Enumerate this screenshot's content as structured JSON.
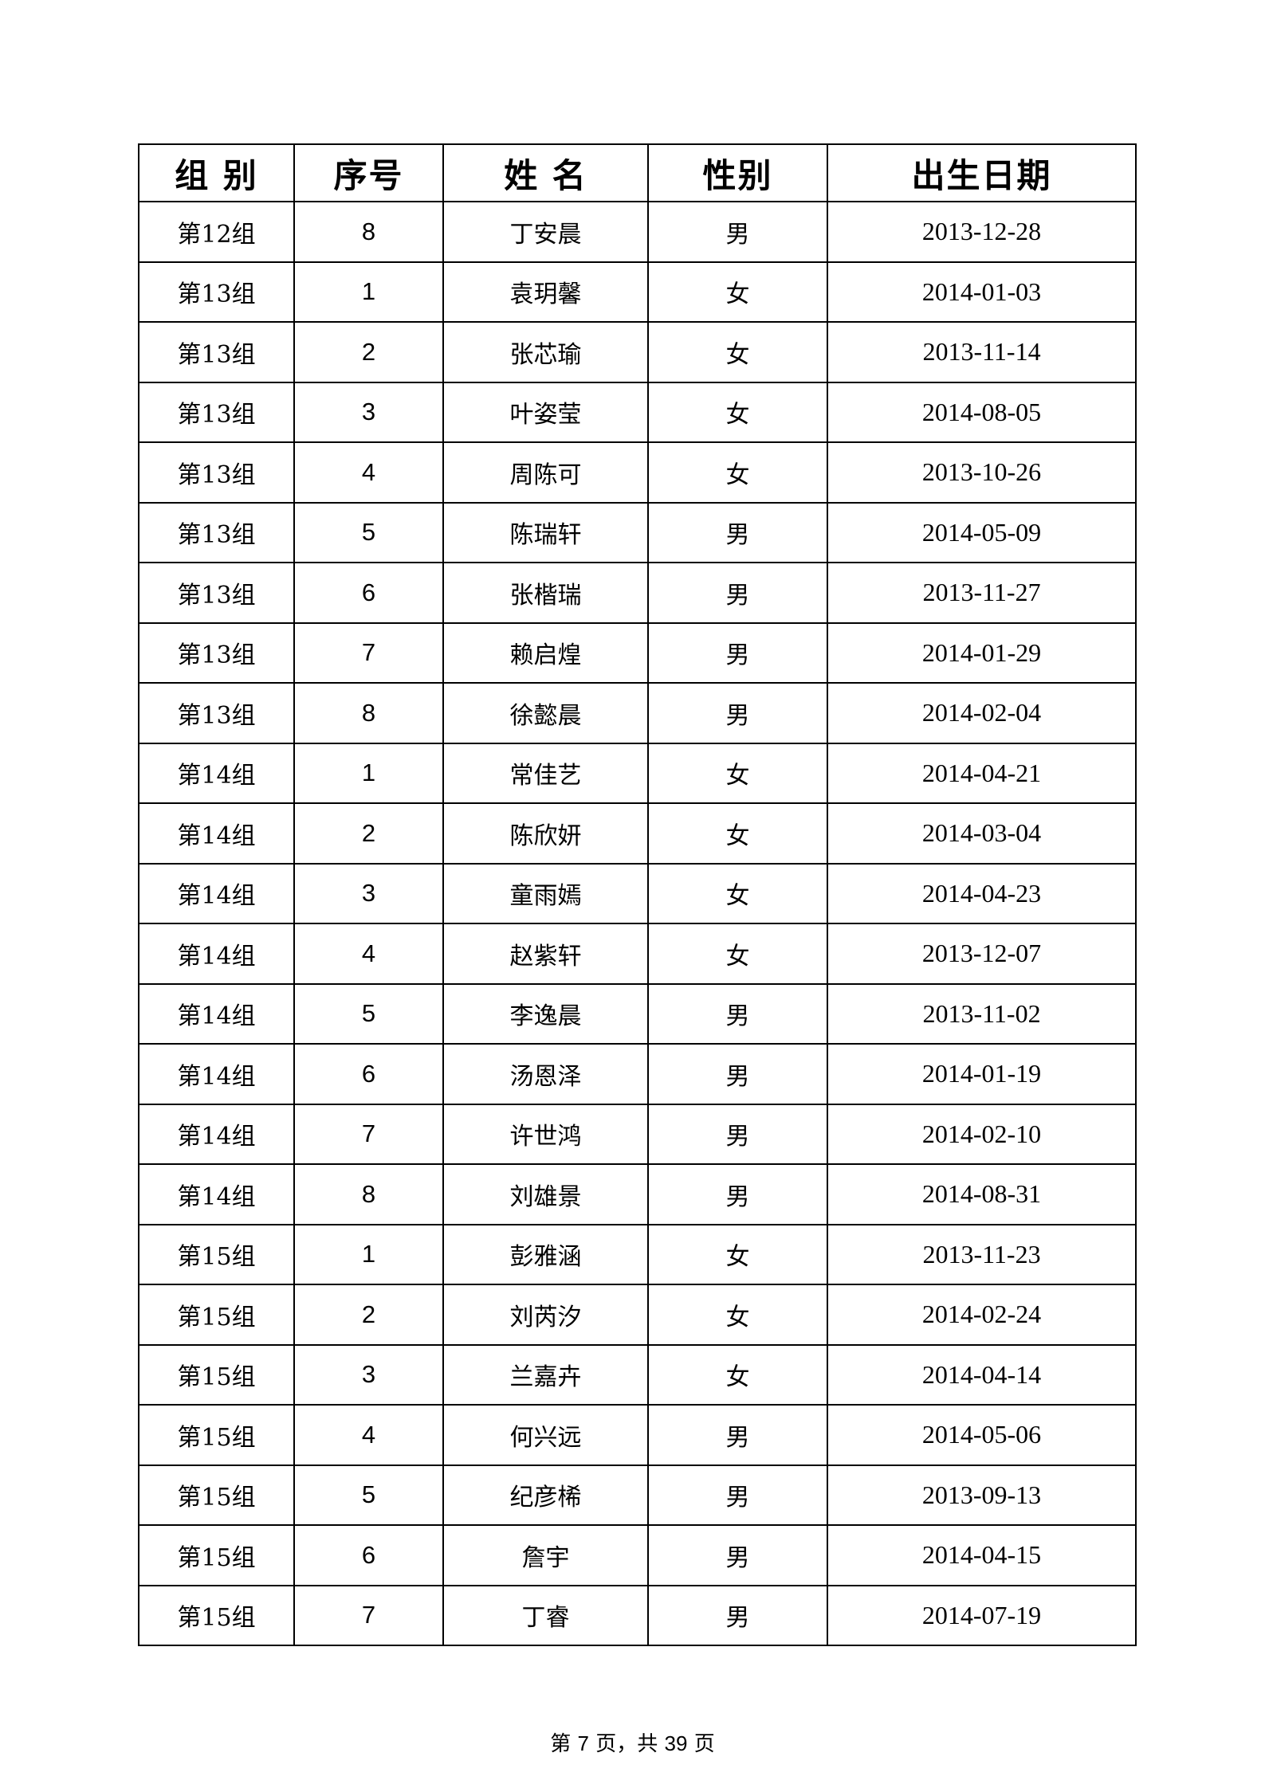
{
  "table": {
    "headers": [
      "组 别",
      "序号",
      "姓 名",
      "性别",
      "出生日期"
    ],
    "rows": [
      [
        "第12组",
        "8",
        "丁安晨",
        "男",
        "2013-12-28"
      ],
      [
        "第13组",
        "1",
        "袁玥馨",
        "女",
        "2014-01-03"
      ],
      [
        "第13组",
        "2",
        "张芯瑜",
        "女",
        "2013-11-14"
      ],
      [
        "第13组",
        "3",
        "叶姿莹",
        "女",
        "2014-08-05"
      ],
      [
        "第13组",
        "4",
        "周陈可",
        "女",
        "2013-10-26"
      ],
      [
        "第13组",
        "5",
        "陈瑞轩",
        "男",
        "2014-05-09"
      ],
      [
        "第13组",
        "6",
        "张楷瑞",
        "男",
        "2013-11-27"
      ],
      [
        "第13组",
        "7",
        "赖启煌",
        "男",
        "2014-01-29"
      ],
      [
        "第13组",
        "8",
        "徐懿晨",
        "男",
        "2014-02-04"
      ],
      [
        "第14组",
        "1",
        "常佳艺",
        "女",
        "2014-04-21"
      ],
      [
        "第14组",
        "2",
        "陈欣妍",
        "女",
        "2014-03-04"
      ],
      [
        "第14组",
        "3",
        "童雨嫣",
        "女",
        "2014-04-23"
      ],
      [
        "第14组",
        "4",
        "赵紫轩",
        "女",
        "2013-12-07"
      ],
      [
        "第14组",
        "5",
        "李逸晨",
        "男",
        "2013-11-02"
      ],
      [
        "第14组",
        "6",
        "汤恩泽",
        "男",
        "2014-01-19"
      ],
      [
        "第14组",
        "7",
        "许世鸿",
        "男",
        "2014-02-10"
      ],
      [
        "第14组",
        "8",
        "刘雄景",
        "男",
        "2014-08-31"
      ],
      [
        "第15组",
        "1",
        "彭雅涵",
        "女",
        "2013-11-23"
      ],
      [
        "第15组",
        "2",
        "刘芮汐",
        "女",
        "2014-02-24"
      ],
      [
        "第15组",
        "3",
        "兰嘉卉",
        "女",
        "2014-04-14"
      ],
      [
        "第15组",
        "4",
        "何兴远",
        "男",
        "2014-05-06"
      ],
      [
        "第15组",
        "5",
        "纪彦桸",
        "男",
        "2013-09-13"
      ],
      [
        "第15组",
        "6",
        "詹宇",
        "男",
        "2014-04-15"
      ],
      [
        "第15组",
        "7",
        "丁睿",
        "男",
        "2014-07-19"
      ]
    ]
  },
  "footer": {
    "prefix": "第",
    "page": "7",
    "middle": "页，共",
    "total": "39",
    "suffix": "页"
  }
}
